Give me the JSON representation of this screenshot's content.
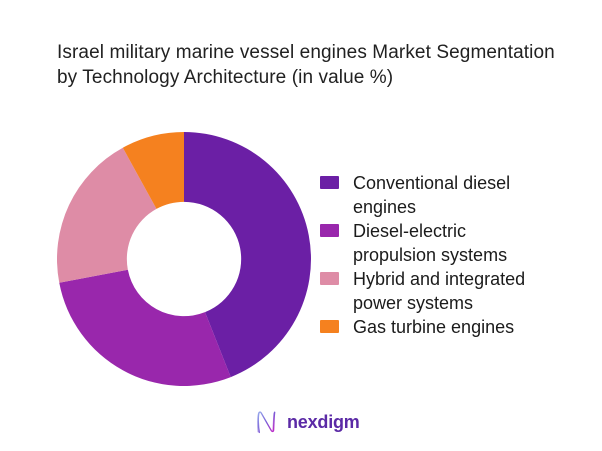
{
  "title": {
    "text": "Israel military marine vessel engines Market Segmentation by Technology Architecture (in value %)"
  },
  "chart_data": {
    "type": "pie",
    "subtype": "donut",
    "title": "Israel military marine vessel engines Market Segmentation by Technology Architecture (in value %)",
    "categories": [
      "Conventional diesel engines",
      "Diesel-electric propulsion systems",
      "Hybrid and integrated power systems",
      "Gas turbine engines"
    ],
    "values": [
      44,
      28,
      20,
      8
    ],
    "unit": "%",
    "colors": [
      "#6B1FA5",
      "#9927AC",
      "#DE8CA6",
      "#F5811F"
    ],
    "start_angle_deg": 0,
    "direction": "clockwise",
    "inner_radius_ratio": 0.45,
    "legend_position": "right",
    "data_labels_visible": false
  },
  "legend": {
    "items": [
      {
        "label": "Conventional diesel engines",
        "color": "#6B1FA5"
      },
      {
        "label": "Diesel-electric propulsion systems",
        "color": "#9927AC"
      },
      {
        "label": "Hybrid and integrated power systems",
        "color": "#DE8CA6"
      },
      {
        "label": "Gas turbine engines",
        "color": "#F5811F"
      }
    ]
  },
  "logo": {
    "wordmark": "nexdigm",
    "wordmark_color": "#5B2AA6",
    "mark_gradient": [
      "#96A9EC",
      "#7A5CD6",
      "#C623C6"
    ]
  }
}
